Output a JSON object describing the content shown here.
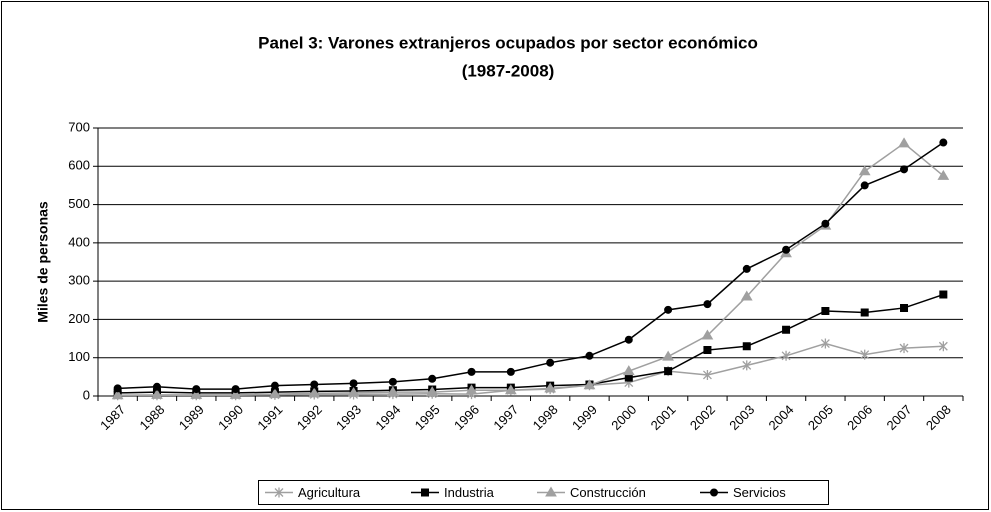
{
  "chart_data": {
    "type": "line",
    "title": "Panel 3: Varones extranjeros ocupados por sector económico",
    "subtitle": "(1987-2008)",
    "y_label": "Miles de personas",
    "categories": [
      "1987",
      "1988",
      "1989",
      "1990",
      "1991",
      "1992",
      "1993",
      "1994",
      "1995",
      "1996",
      "1997",
      "1998",
      "1999",
      "2000",
      "2001",
      "2002",
      "2003",
      "2004",
      "2005",
      "2006",
      "2007",
      "2008"
    ],
    "series": [
      {
        "name": "Agricultura",
        "color": "#a0a0a0",
        "marker": "asterisk",
        "values": [
          2,
          2,
          2,
          2,
          3,
          4,
          4,
          5,
          6,
          5,
          15,
          18,
          28,
          35,
          65,
          55,
          80,
          105,
          137,
          108,
          125,
          130
        ]
      },
      {
        "name": "Industria",
        "color": "#000000",
        "marker": "square",
        "values": [
          8,
          10,
          8,
          8,
          10,
          12,
          13,
          15,
          17,
          22,
          22,
          27,
          30,
          48,
          65,
          120,
          130,
          173,
          222,
          218,
          230,
          265
        ]
      },
      {
        "name": "Construcción",
        "color": "#a0a0a0",
        "marker": "triangle",
        "values": [
          2,
          3,
          3,
          3,
          5,
          7,
          8,
          10,
          10,
          15,
          15,
          20,
          28,
          65,
          103,
          158,
          260,
          373,
          445,
          587,
          660,
          575
        ]
      },
      {
        "name": "Servicios",
        "color": "#000000",
        "marker": "circle",
        "values": [
          20,
          24,
          18,
          18,
          27,
          30,
          33,
          37,
          45,
          63,
          63,
          87,
          105,
          147,
          225,
          240,
          332,
          382,
          450,
          550,
          592,
          662
        ]
      }
    ],
    "ylim": [
      0,
      700
    ],
    "yticks": [
      0,
      100,
      200,
      300,
      400,
      500,
      600,
      700
    ],
    "grid": true,
    "legend": "bottom"
  }
}
